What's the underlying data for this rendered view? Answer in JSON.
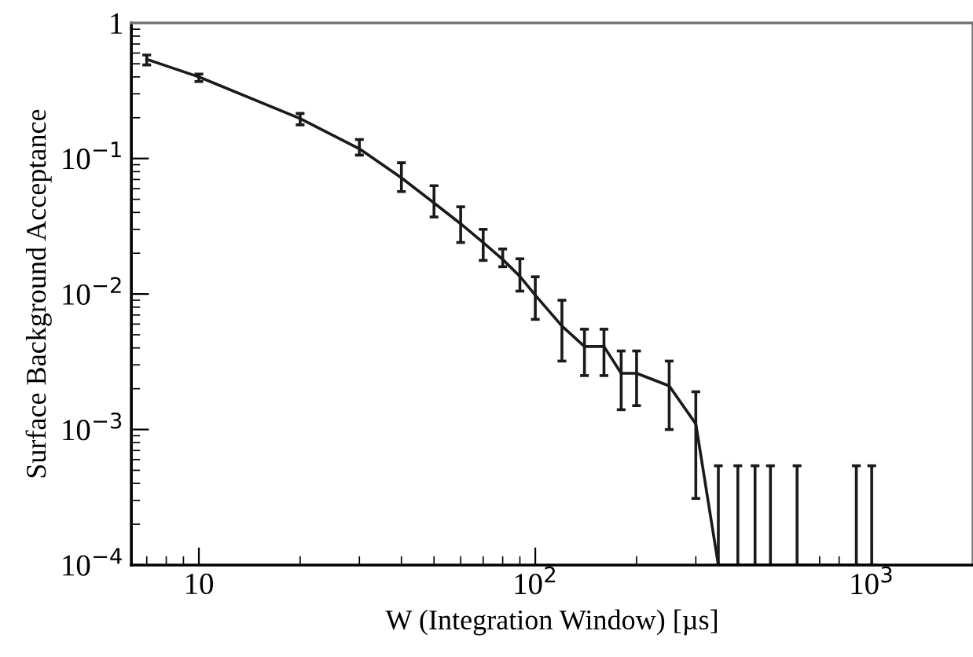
{
  "chart_data": {
    "type": "line",
    "xlabel": "W (Integration Window) [µs]",
    "ylabel": "Surface Background Acceptance",
    "log": "xy",
    "xlim": [
      6.3,
      2000
    ],
    "ylim": [
      0.0001,
      1
    ],
    "xticks": [
      10,
      {
        "value": 100,
        "label": "10$^{2}$"
      },
      {
        "value": 1000,
        "label": "10$^{3}$"
      }
    ],
    "yticks": [
      {
        "value": 0.0001,
        "label": "10$^{−4}$"
      },
      {
        "value": 0.001,
        "label": "10$^{−3}$"
      },
      {
        "value": 0.01,
        "label": "10$^{−2}$"
      },
      {
        "value": 0.1,
        "label": "10$^{−1}$"
      },
      1
    ],
    "grid": false,
    "marker": "none",
    "line_style": "solid",
    "series": [
      {
        "color": "#1a1a1a",
        "x": [
          7,
          10,
          20,
          30,
          40,
          50,
          60,
          70,
          80,
          90,
          100,
          120,
          140,
          160,
          180,
          200,
          250,
          300,
          350,
          400,
          450,
          500,
          600,
          900,
          1000
        ],
        "values": [
          0.54,
          0.4,
          0.197,
          0.118,
          0.072,
          0.047,
          0.033,
          0.024,
          0.018,
          0.0135,
          0.0098,
          0.0058,
          0.0041,
          0.0041,
          0.0026,
          0.0026,
          0.0021,
          0.0011,
          0.0001,
          0.0001,
          0.0001,
          0.0001,
          0.0001,
          0.0001,
          0.0001
        ],
        "errors": [
          [
            0.49,
            0.58
          ],
          [
            0.37,
            0.42
          ],
          [
            0.177,
            0.215
          ],
          [
            0.106,
            0.138
          ],
          [
            0.057,
            0.093
          ],
          [
            0.037,
            0.063
          ],
          [
            0.024,
            0.044
          ],
          [
            0.0177,
            0.03
          ],
          [
            0.0159,
            0.0215
          ],
          [
            0.0105,
            0.0182
          ],
          [
            0.0065,
            0.0134
          ],
          [
            0.0032,
            0.009
          ],
          [
            0.0025,
            0.0055
          ],
          [
            0.0025,
            0.0055
          ],
          [
            0.0014,
            0.0038
          ],
          [
            0.0015,
            0.0038
          ],
          [
            0.001,
            0.0032
          ],
          [
            0.00031,
            0.0019
          ],
          [
            0.0001,
            0.00054
          ],
          [
            0.0001,
            0.00054
          ],
          [
            0.0001,
            0.00054
          ],
          [
            0.0001,
            0.00054
          ],
          [
            0.0001,
            0.00054
          ],
          [
            0.0001,
            0.00054
          ],
          [
            0.0001,
            0.00054
          ]
        ]
      }
    ]
  }
}
